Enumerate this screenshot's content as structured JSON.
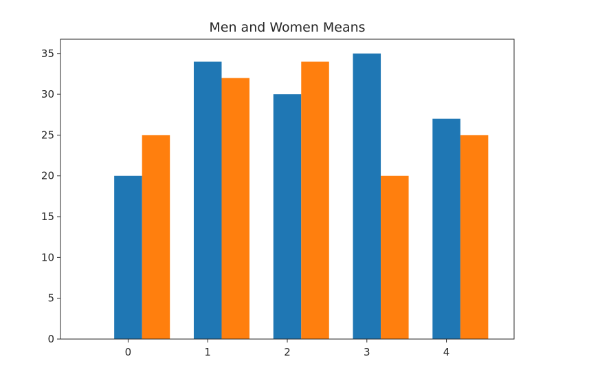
{
  "chart_data": {
    "type": "bar",
    "title": "Men and Women Means",
    "xlabel": "",
    "ylabel": "",
    "categories": [
      "0",
      "1",
      "2",
      "3",
      "4"
    ],
    "series": [
      {
        "values": [
          20,
          34,
          30,
          35,
          27
        ],
        "color": "#1f77b4"
      },
      {
        "values": [
          25,
          32,
          34,
          20,
          25
        ],
        "color": "#ff7f0e"
      }
    ],
    "ylim": [
      0,
      36.75
    ],
    "yticks": [
      0,
      5,
      10,
      15,
      20,
      25,
      30,
      35
    ],
    "grid": false,
    "legend": "none"
  }
}
